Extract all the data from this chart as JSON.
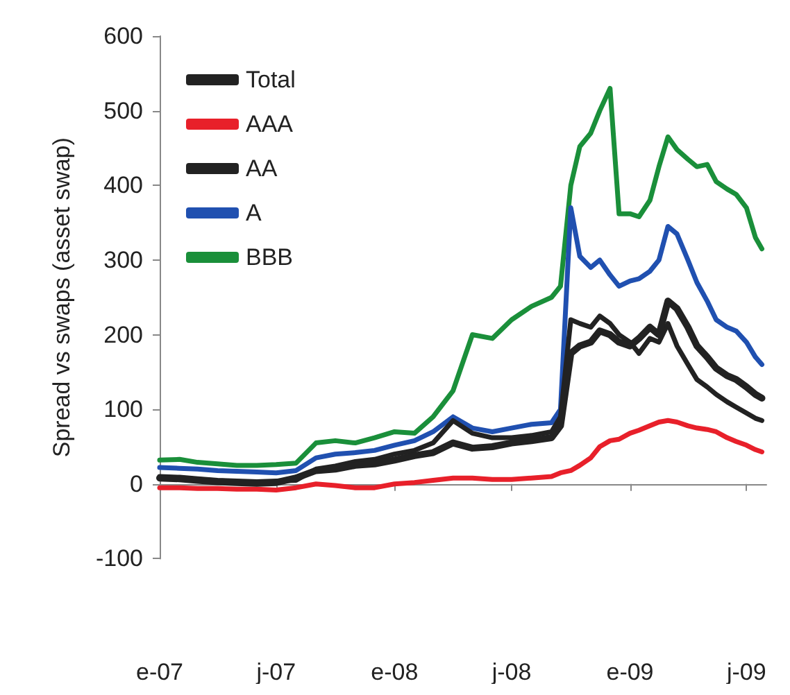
{
  "chart_data": {
    "type": "line",
    "ylabel": "Spread vs swaps (asset swap)",
    "x": [
      "2007-01-01",
      "2007-02-01",
      "2007-03-01",
      "2007-04-01",
      "2007-05-01",
      "2007-06-01",
      "2007-07-01",
      "2007-08-01",
      "2007-09-01",
      "2007-10-01",
      "2007-11-01",
      "2007-12-01",
      "2008-01-01",
      "2008-02-01",
      "2008-03-01",
      "2008-04-01",
      "2008-05-01",
      "2008-06-01",
      "2008-07-01",
      "2008-08-01",
      "2008-09-01",
      "2008-09-15",
      "2008-10-01",
      "2008-10-15",
      "2008-11-01",
      "2008-11-15",
      "2008-12-01",
      "2008-12-15",
      "2009-01-01",
      "2009-01-15",
      "2009-02-01",
      "2009-02-15",
      "2009-03-01",
      "2009-03-15",
      "2009-04-01",
      "2009-04-15",
      "2009-05-01",
      "2009-05-15",
      "2009-06-01",
      "2009-06-15",
      "2009-07-01",
      "2009-07-15",
      "2009-07-25"
    ],
    "series": [
      {
        "name": "Total",
        "color": "#222222",
        "values": [
          8,
          7,
          5,
          3,
          2,
          1,
          2,
          8,
          18,
          20,
          25,
          27,
          32,
          38,
          42,
          55,
          48,
          50,
          55,
          58,
          62,
          78,
          175,
          185,
          190,
          205,
          200,
          190,
          185,
          195,
          210,
          200,
          245,
          235,
          210,
          185,
          170,
          155,
          145,
          140,
          130,
          120,
          115
        ]
      },
      {
        "name": "AAA",
        "color": "#e8202a",
        "values": [
          -5,
          -5,
          -6,
          -6,
          -7,
          -7,
          -8,
          -5,
          0,
          -2,
          -5,
          -5,
          0,
          2,
          5,
          8,
          8,
          6,
          6,
          8,
          10,
          15,
          18,
          25,
          35,
          50,
          58,
          60,
          68,
          72,
          78,
          83,
          85,
          83,
          78,
          75,
          73,
          70,
          62,
          57,
          52,
          46,
          43
        ]
      },
      {
        "name": "AA",
        "color": "#222222",
        "values": [
          10,
          9,
          7,
          5,
          4,
          3,
          4,
          5,
          20,
          24,
          30,
          33,
          40,
          45,
          55,
          85,
          68,
          62,
          62,
          65,
          70,
          90,
          220,
          215,
          210,
          225,
          215,
          200,
          190,
          175,
          195,
          190,
          215,
          185,
          160,
          140,
          130,
          120,
          110,
          103,
          95,
          88,
          85
        ]
      },
      {
        "name": "A",
        "color": "#2050b0",
        "values": [
          22,
          21,
          20,
          18,
          17,
          16,
          15,
          18,
          35,
          40,
          42,
          45,
          52,
          58,
          70,
          90,
          75,
          70,
          75,
          80,
          82,
          100,
          370,
          305,
          290,
          300,
          280,
          265,
          272,
          275,
          285,
          300,
          345,
          335,
          300,
          270,
          245,
          220,
          210,
          205,
          190,
          170,
          160
        ]
      },
      {
        "name": "BBB",
        "color": "#1a8f3a",
        "values": [
          32,
          33,
          29,
          27,
          25,
          25,
          26,
          28,
          55,
          58,
          55,
          62,
          70,
          68,
          90,
          125,
          200,
          195,
          220,
          238,
          250,
          265,
          400,
          452,
          470,
          500,
          530,
          362,
          362,
          358,
          380,
          425,
          465,
          448,
          435,
          425,
          428,
          405,
          395,
          388,
          370,
          330,
          315
        ]
      }
    ],
    "xlim": [
      "2007-01-01",
      "2009-08-01"
    ],
    "xticks": [
      {
        "value": "2007-01-01",
        "label": "e-07"
      },
      {
        "value": "2007-07-01",
        "label": "j-07"
      },
      {
        "value": "2008-01-01",
        "label": "e-08"
      },
      {
        "value": "2008-07-01",
        "label": "j-08"
      },
      {
        "value": "2009-01-01",
        "label": "e-09"
      },
      {
        "value": "2009-07-01",
        "label": "j-09"
      }
    ],
    "ylim": [
      -100,
      600
    ],
    "yticks": [
      -100,
      0,
      100,
      200,
      300,
      400,
      500,
      600
    ],
    "legend": "top left",
    "marker": "none",
    "line_style": "solid"
  }
}
